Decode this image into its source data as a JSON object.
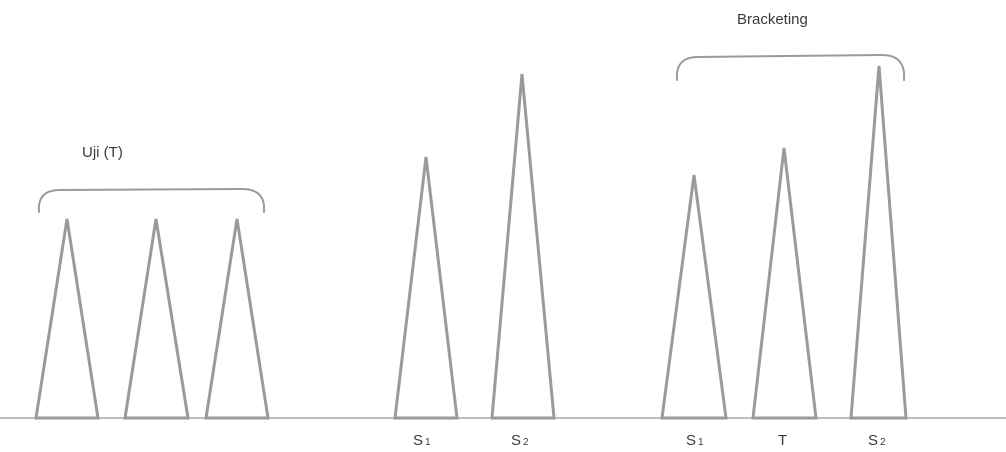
{
  "labels": {
    "test_group": "Uji (T)",
    "bracketing_group": "Bracketing"
  },
  "peak_labels": {
    "s1_main_letter": "S",
    "s1_main_sub": "1",
    "s2_main_letter": "S",
    "s2_main_sub": "2",
    "s1_bracket_letter": "S",
    "s1_bracket_sub": "1",
    "t_bracket": "T",
    "s2_bracket_letter": "S",
    "s2_bracket_sub": "2"
  },
  "colors": {
    "peak_stroke": "#9a9a9a",
    "baseline": "#a8a8a8",
    "text": "#3a3a3a"
  }
}
